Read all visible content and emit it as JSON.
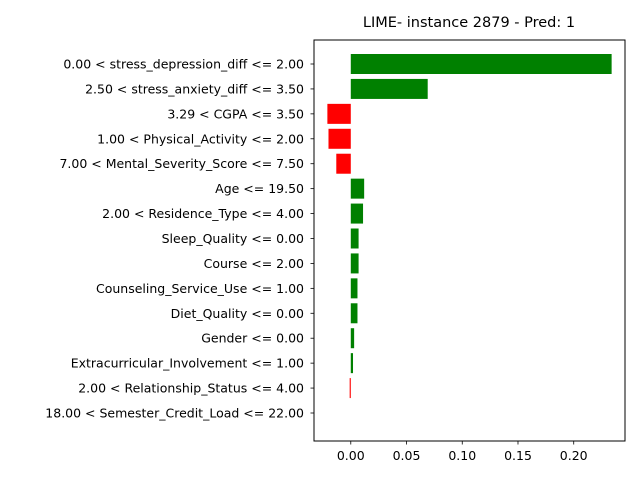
{
  "chart_data": {
    "type": "bar",
    "orientation": "horizontal",
    "title": "LIME- instance 2879 - Pred: 1",
    "xlabel": "",
    "ylabel": "",
    "xlim": [
      -0.033,
      0.246
    ],
    "xticks": [
      0.0,
      0.05,
      0.1,
      0.15,
      0.2
    ],
    "xtick_labels": [
      "0.00",
      "0.05",
      "0.10",
      "0.15",
      "0.20"
    ],
    "grid": false,
    "legend": "none",
    "colors": {
      "positive": "#008000",
      "negative": "#ff0000"
    },
    "categories": [
      "0.00 < stress_depression_diff <= 2.00",
      "2.50 < stress_anxiety_diff <= 3.50",
      "3.29 < CGPA <= 3.50",
      "1.00 < Physical_Activity <= 2.00",
      "7.00 < Mental_Severity_Score <= 7.50",
      "Age <= 19.50",
      "2.00 < Residence_Type <= 4.00",
      "Sleep_Quality <= 0.00",
      "Course <= 2.00",
      "Counseling_Service_Use <= 1.00",
      "Diet_Quality <= 0.00",
      "Gender <= 0.00",
      "Extracurricular_Involvement <= 1.00",
      "2.00 < Relationship_Status <= 4.00",
      "18.00 < Semester_Credit_Load <= 22.00"
    ],
    "values": [
      0.234,
      0.069,
      -0.021,
      -0.02,
      -0.013,
      0.012,
      0.011,
      0.007,
      0.007,
      0.006,
      0.006,
      0.003,
      0.002,
      -0.001,
      0.0
    ]
  }
}
